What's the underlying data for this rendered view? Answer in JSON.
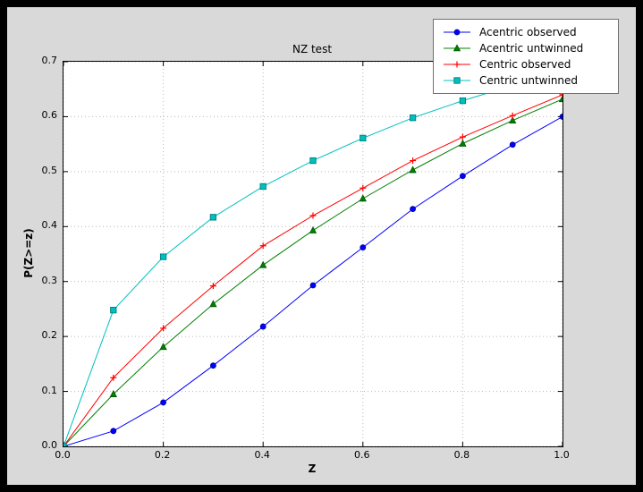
{
  "colors": {
    "frame": "#000000",
    "figure_background": "#d9d9d9",
    "axes_background": "#ffffff",
    "grid": "#b8b8b8",
    "axis": "#000000"
  },
  "chart_data": {
    "type": "line",
    "title": "NZ test",
    "xlabel": "Z",
    "ylabel": "P(Z>=z)",
    "xlim": [
      0.0,
      1.0
    ],
    "ylim": [
      0.0,
      0.7
    ],
    "xticks": [
      0.0,
      0.2,
      0.4,
      0.6,
      0.8,
      1.0
    ],
    "xtick_labels": [
      "0.0",
      "0.2",
      "0.4",
      "0.6",
      "0.8",
      "1.0"
    ],
    "yticks": [
      0.0,
      0.1,
      0.2,
      0.3,
      0.4,
      0.5,
      0.6,
      0.7
    ],
    "ytick_labels": [
      "0.0",
      "0.1",
      "0.2",
      "0.3",
      "0.4",
      "0.5",
      "0.6",
      "0.7"
    ],
    "grid": true,
    "legend_position": "upper right",
    "x": [
      0.0,
      0.1,
      0.2,
      0.3,
      0.4,
      0.5,
      0.6,
      0.7,
      0.8,
      0.9,
      1.0
    ],
    "series": [
      {
        "name": "Acentric observed",
        "color": "#0000ff",
        "marker": "circle",
        "marker_edge": "#0000a0",
        "values": [
          0.0,
          0.028,
          0.08,
          0.147,
          0.218,
          0.293,
          0.362,
          0.432,
          0.492,
          0.549,
          0.6
        ]
      },
      {
        "name": "Acentric untwinned",
        "color": "#008000",
        "marker": "triangle",
        "marker_edge": "#005500",
        "values": [
          0.0,
          0.095,
          0.181,
          0.259,
          0.33,
          0.393,
          0.451,
          0.503,
          0.551,
          0.593,
          0.632
        ]
      },
      {
        "name": "Centric observed",
        "color": "#ff0000",
        "marker": "plus",
        "marker_edge": "#cc0000",
        "values": [
          0.0,
          0.125,
          0.215,
          0.292,
          0.365,
          0.42,
          0.47,
          0.52,
          0.563,
          0.602,
          0.64
        ]
      },
      {
        "name": "Centric untwinned",
        "color": "#00bfbf",
        "marker": "square",
        "marker_edge": "#007d7d",
        "values": [
          0.0,
          0.248,
          0.345,
          0.417,
          0.473,
          0.52,
          0.561,
          0.598,
          0.629,
          0.657,
          0.683
        ]
      }
    ]
  }
}
